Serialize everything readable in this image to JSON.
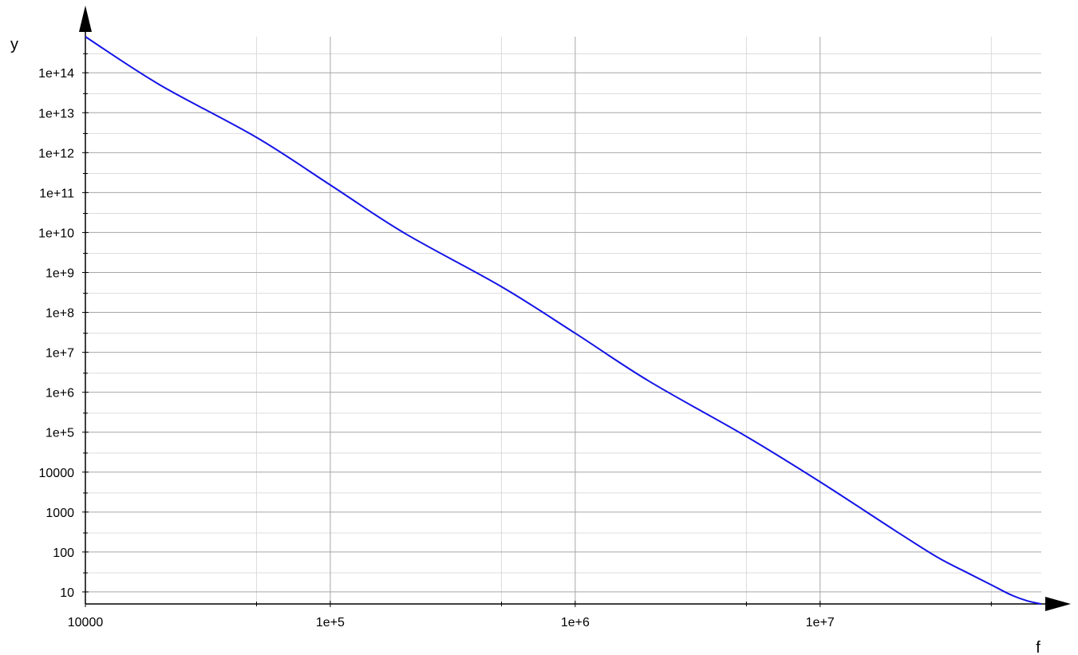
{
  "chart_data": {
    "type": "line",
    "title": "",
    "xlabel": "f",
    "ylabel": "y",
    "x_scale": "log",
    "y_scale": "log",
    "xlim": [
      10000,
      80000000
    ],
    "ylim": [
      5,
      800000000000000
    ],
    "grid": true,
    "x_ticks": [
      {
        "value": 10000,
        "label": "10000"
      },
      {
        "value": 100000,
        "label": "1e+5"
      },
      {
        "value": 1000000,
        "label": "1e+6"
      },
      {
        "value": 10000000,
        "label": "1e+7"
      }
    ],
    "y_ticks": [
      {
        "value": 10,
        "label": "10"
      },
      {
        "value": 100,
        "label": "100"
      },
      {
        "value": 1000,
        "label": "1000"
      },
      {
        "value": 10000,
        "label": "10000"
      },
      {
        "value": 100000,
        "label": "1e+5"
      },
      {
        "value": 1000000,
        "label": "1e+6"
      },
      {
        "value": 10000000,
        "label": "1e+7"
      },
      {
        "value": 100000000,
        "label": "1e+8"
      },
      {
        "value": 1000000000,
        "label": "1e+9"
      },
      {
        "value": 10000000000,
        "label": "1e+10"
      },
      {
        "value": 100000000000,
        "label": "1e+11"
      },
      {
        "value": 1000000000000,
        "label": "1e+12"
      },
      {
        "value": 10000000000000,
        "label": "1e+13"
      },
      {
        "value": 100000000000000,
        "label": "1e+14"
      }
    ],
    "series": [
      {
        "color": "#1414e6",
        "x": [
          10000,
          20000,
          50000,
          100000,
          200000,
          500000,
          1000000,
          2000000,
          5000000,
          10000000,
          20000000,
          30000000,
          40000000,
          50000000,
          60000000,
          70000000,
          80000000
        ],
        "y": [
          800000000000000,
          51000000000000,
          2400000000000,
          155000000000,
          9800000000,
          440000000,
          30000000,
          1900000,
          78000,
          5700,
          360,
          75,
          30,
          15,
          8.5,
          6,
          5
        ]
      }
    ]
  },
  "colors": {
    "major_grid": "#a6a6a6",
    "minor_grid": "#dcdcdc",
    "axis": "#000000"
  }
}
